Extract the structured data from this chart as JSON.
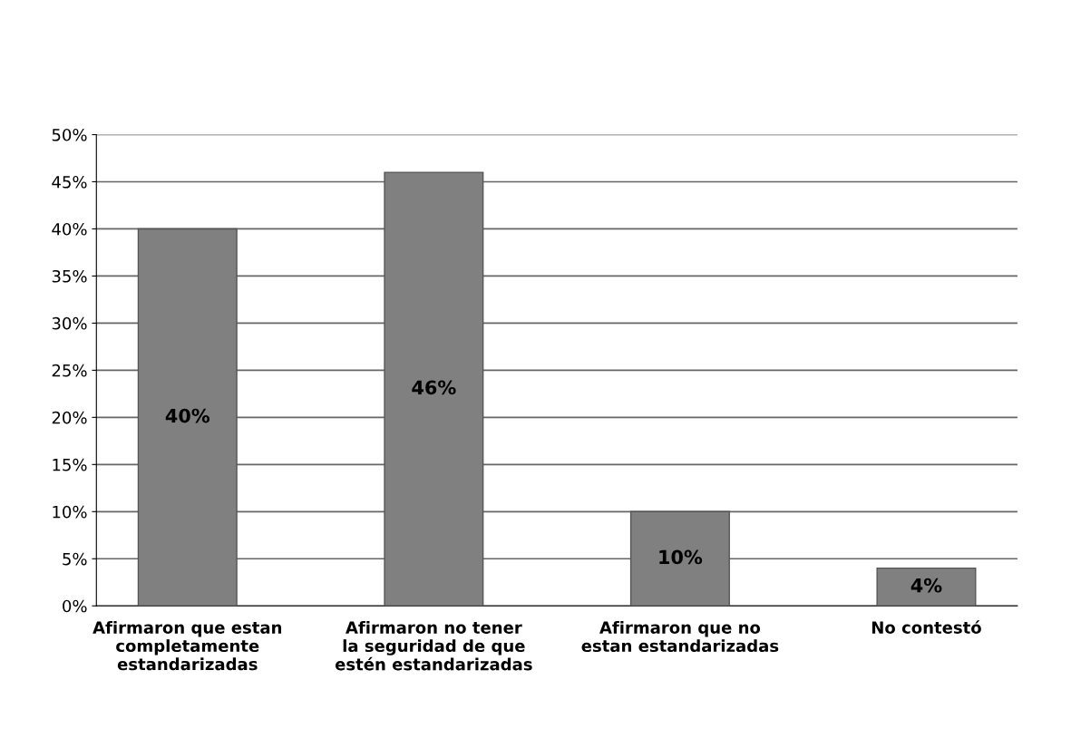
{
  "chart_data": {
    "type": "bar",
    "categories": [
      "Afirmaron que estan\ncompletamente\nestandarizadas",
      "Afirmaron no tener\nla seguridad de que\nestén estandarizadas",
      "Afirmaron que no\nestan estandarizadas",
      "No contestó"
    ],
    "values": [
      40,
      46,
      10,
      4
    ],
    "value_labels": [
      "40%",
      "46%",
      "10%",
      "4%"
    ],
    "color": "#808080",
    "ylim": [
      0,
      50
    ],
    "yticks": [
      {
        "value": 0,
        "label": "0%"
      },
      {
        "value": 5,
        "label": "5%"
      },
      {
        "value": 10,
        "label": "10%"
      },
      {
        "value": 15,
        "label": "15%"
      },
      {
        "value": 20,
        "label": "20%"
      },
      {
        "value": 25,
        "label": "25%"
      },
      {
        "value": 30,
        "label": "30%"
      },
      {
        "value": 35,
        "label": "35%"
      },
      {
        "value": 40,
        "label": "40%"
      },
      {
        "value": 45,
        "label": "45%"
      },
      {
        "value": 50,
        "label": "50%"
      }
    ],
    "grid": "y"
  }
}
